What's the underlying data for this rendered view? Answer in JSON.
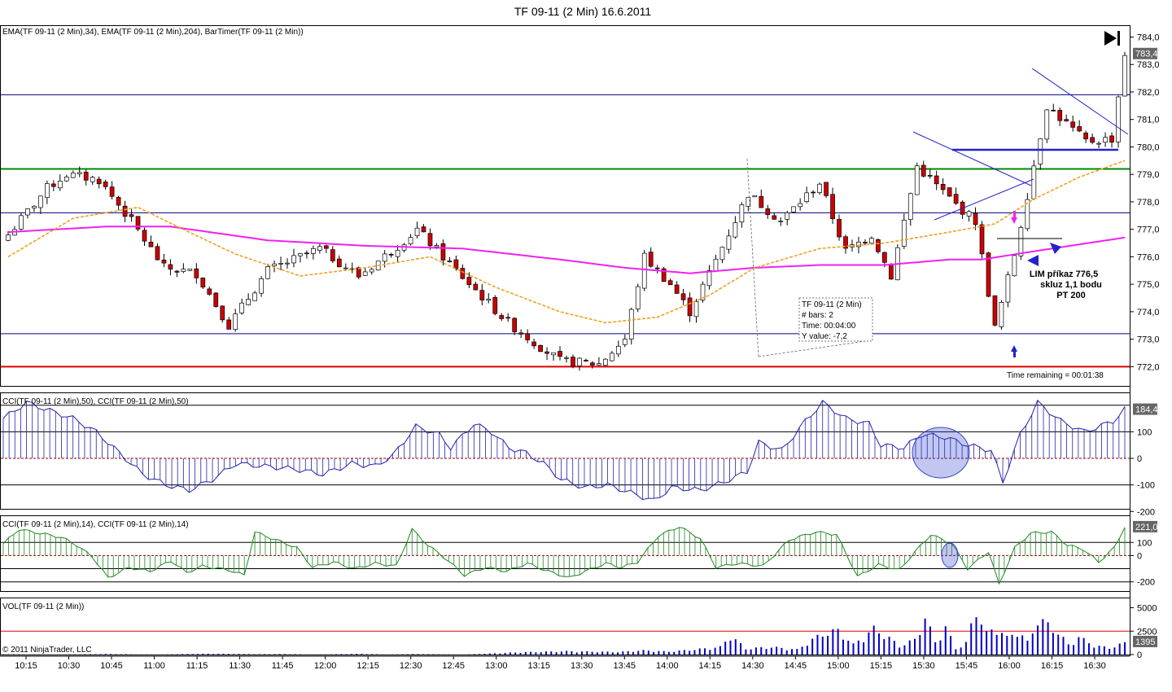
{
  "window": {
    "title": "TF 09-11 (2 Min)  16.6.2011"
  },
  "copyright": "© 2011 NinjaTrader, LLC",
  "colors": {
    "up": "#ffffff",
    "down": "#cc0000",
    "ema34": "#f0a020",
    "ema204": "#ee22ee",
    "cci": "#2222aa",
    "cci14": "#228822",
    "vol": "#0000cc",
    "hline": "#000080",
    "green_level": "#008800",
    "red_level": "#dd0000"
  },
  "play_icon": "skip-forward-icon",
  "chart_data": [
    {
      "type": "candlestick",
      "name": "price",
      "label": "EMA(TF 09-11 (2 Min),34), EMA(TF 09-11 (2 Min),204), BarTimer(TF 09-11 (2 Min))",
      "x": [
        "10:15",
        "10:30",
        "10:45",
        "11:00",
        "11:15",
        "11:30",
        "11:45",
        "12:00",
        "12:15",
        "12:30",
        "12:45",
        "13:00",
        "13:15",
        "13:30",
        "13:45",
        "14:00",
        "14:15",
        "14:30",
        "14:45",
        "15:00",
        "15:15",
        "15:30",
        "15:45",
        "16:00",
        "16:15",
        "16:30"
      ],
      "ylim": [
        771.3,
        784.4
      ],
      "yticks": [
        "784,0",
        "783,0",
        "782,0",
        "781,0",
        "780,0",
        "779,0",
        "778,0",
        "777,0",
        "776,0",
        "775,0",
        "774,0",
        "773,0",
        "772,0"
      ],
      "ytick_values": [
        784,
        783,
        782,
        781,
        780,
        779,
        778,
        777,
        776,
        775,
        774,
        773,
        772
      ],
      "last_value": "783,4",
      "close_anchors": [
        [
          0,
          776.8
        ],
        [
          6,
          778.5
        ],
        [
          9,
          779.0
        ],
        [
          14,
          778.8
        ],
        [
          19,
          777.3
        ],
        [
          24,
          775.6
        ],
        [
          29,
          775.4
        ],
        [
          34,
          773.5
        ],
        [
          40,
          775.5
        ],
        [
          48,
          776.3
        ],
        [
          54,
          775.3
        ],
        [
          59,
          776.2
        ],
        [
          63,
          777.0
        ],
        [
          69,
          775.5
        ],
        [
          77,
          773.6
        ],
        [
          85,
          772.2
        ],
        [
          91,
          772.1
        ],
        [
          95,
          773.0
        ],
        [
          98,
          776.0
        ],
        [
          102,
          775.0
        ],
        [
          105,
          774.0
        ],
        [
          108,
          775.4
        ],
        [
          114,
          778.3
        ],
        [
          119,
          777.3
        ],
        [
          125,
          778.7
        ],
        [
          129,
          776.2
        ],
        [
          133,
          776.8
        ],
        [
          136,
          775.3
        ],
        [
          140,
          779.3
        ],
        [
          146,
          777.9
        ],
        [
          149,
          777.3
        ],
        [
          152,
          773.4
        ],
        [
          155,
          776.1
        ],
        [
          160,
          781.5
        ],
        [
          166,
          780.2
        ],
        [
          170,
          780.3
        ],
        [
          172,
          783.4
        ]
      ],
      "ema34_anchors": [
        [
          0,
          776.0
        ],
        [
          10,
          777.4
        ],
        [
          20,
          777.8
        ],
        [
          27,
          777.0
        ],
        [
          35,
          776.1
        ],
        [
          45,
          775.3
        ],
        [
          55,
          775.6
        ],
        [
          65,
          776.0
        ],
        [
          75,
          774.9
        ],
        [
          85,
          774.0
        ],
        [
          92,
          773.6
        ],
        [
          100,
          773.8
        ],
        [
          108,
          774.6
        ],
        [
          115,
          775.6
        ],
        [
          125,
          776.3
        ],
        [
          135,
          776.5
        ],
        [
          145,
          776.9
        ],
        [
          152,
          777.2
        ],
        [
          158,
          778.1
        ],
        [
          165,
          778.9
        ],
        [
          172,
          779.5
        ]
      ],
      "ema204_anchors": [
        [
          0,
          776.9
        ],
        [
          15,
          777.1
        ],
        [
          25,
          777.1
        ],
        [
          40,
          776.6
        ],
        [
          55,
          776.4
        ],
        [
          70,
          776.3
        ],
        [
          85,
          775.9
        ],
        [
          95,
          775.6
        ],
        [
          105,
          775.4
        ],
        [
          115,
          775.6
        ],
        [
          125,
          775.7
        ],
        [
          135,
          775.7
        ],
        [
          145,
          775.9
        ],
        [
          150,
          775.9
        ],
        [
          158,
          776.2
        ],
        [
          172,
          776.7
        ]
      ],
      "hlines": [
        {
          "y": 781.9,
          "color": "#000080"
        },
        {
          "y": 779.2,
          "color": "#008800"
        },
        {
          "y": 777.6,
          "color": "#000080"
        },
        {
          "y": 773.2,
          "color": "#000080"
        },
        {
          "y": 772.0,
          "color": "#dd0000"
        }
      ],
      "annotations": {
        "order_text": [
          "LIM příkaz 776,5",
          "skluz 1,1 bodu",
          "PT 200"
        ],
        "timer": "Time remaining = 00:01:38",
        "tooltip": [
          "TF 09-11 (2 Min)",
          "# bars:   2",
          "Time:     00:04:00",
          "Y value:  -7,2"
        ]
      }
    },
    {
      "type": "bar",
      "name": "cci50",
      "label": "CCI(TF 09-11 (2 Min),50), CCI(TF 09-11 (2 Min),50)",
      "ylim": [
        -190,
        245
      ],
      "yticks": [
        "100",
        "0",
        "-100",
        "-200"
      ],
      "ytick_values": [
        100,
        0,
        -100,
        -200
      ],
      "levels": [
        200,
        100,
        0,
        -100
      ],
      "last_value": "184,4",
      "anchors": [
        [
          0,
          150
        ],
        [
          4,
          210
        ],
        [
          8,
          180
        ],
        [
          12,
          150
        ],
        [
          16,
          100
        ],
        [
          20,
          20
        ],
        [
          24,
          -60
        ],
        [
          28,
          -100
        ],
        [
          32,
          -120
        ],
        [
          36,
          -80
        ],
        [
          40,
          -20
        ],
        [
          45,
          -30
        ],
        [
          50,
          -40
        ],
        [
          55,
          -60
        ],
        [
          60,
          -20
        ],
        [
          64,
          -30
        ],
        [
          67,
          10
        ],
        [
          71,
          120
        ],
        [
          75,
          90
        ],
        [
          77,
          40
        ],
        [
          81,
          130
        ],
        [
          84,
          100
        ],
        [
          87,
          40
        ],
        [
          90,
          20
        ],
        [
          93,
          -20
        ],
        [
          96,
          -80
        ],
        [
          100,
          -110
        ],
        [
          104,
          -100
        ],
        [
          108,
          -130
        ],
        [
          112,
          -160
        ],
        [
          115,
          -110
        ],
        [
          120,
          -120
        ],
        [
          124,
          -90
        ],
        [
          128,
          -50
        ],
        [
          130,
          60
        ],
        [
          134,
          30
        ],
        [
          138,
          140
        ],
        [
          141,
          210
        ],
        [
          145,
          150
        ],
        [
          149,
          130
        ],
        [
          151,
          50
        ],
        [
          155,
          40
        ],
        [
          158,
          90
        ],
        [
          162,
          80
        ],
        [
          166,
          50
        ],
        [
          170,
          30
        ],
        [
          172,
          -90
        ],
        [
          175,
          90
        ],
        [
          178,
          210
        ],
        [
          182,
          140
        ],
        [
          186,
          100
        ],
        [
          188,
          115
        ],
        [
          191,
          140
        ],
        [
          193,
          185
        ]
      ]
    },
    {
      "type": "bar",
      "name": "cci14",
      "label": "CCI(TF 09-11 (2 Min),14), CCI(TF 09-11 (2 Min),14)",
      "ylim": [
        -270,
        300
      ],
      "yticks": [
        "100",
        "0",
        "-200"
      ],
      "ytick_values": [
        100,
        0,
        -200
      ],
      "levels": [
        100,
        0,
        -100,
        -200
      ],
      "last_value": "221,05",
      "anchors": [
        [
          0,
          90
        ],
        [
          3,
          200
        ],
        [
          7,
          170
        ],
        [
          11,
          140
        ],
        [
          14,
          80
        ],
        [
          17,
          -10
        ],
        [
          20,
          -170
        ],
        [
          24,
          -90
        ],
        [
          28,
          -120
        ],
        [
          32,
          -40
        ],
        [
          35,
          -130
        ],
        [
          38,
          -80
        ],
        [
          43,
          -110
        ],
        [
          46,
          -150
        ],
        [
          48,
          180
        ],
        [
          52,
          120
        ],
        [
          56,
          60
        ],
        [
          59,
          -90
        ],
        [
          63,
          -50
        ],
        [
          67,
          -100
        ],
        [
          71,
          -60
        ],
        [
          75,
          -80
        ],
        [
          78,
          200
        ],
        [
          81,
          80
        ],
        [
          84,
          -10
        ],
        [
          88,
          -150
        ],
        [
          92,
          -90
        ],
        [
          96,
          -120
        ],
        [
          100,
          -60
        ],
        [
          104,
          -120
        ],
        [
          108,
          -170
        ],
        [
          111,
          -120
        ],
        [
          115,
          -60
        ],
        [
          118,
          -90
        ],
        [
          121,
          -50
        ],
        [
          125,
          150
        ],
        [
          129,
          220
        ],
        [
          133,
          130
        ],
        [
          136,
          -90
        ],
        [
          140,
          -60
        ],
        [
          145,
          -80
        ],
        [
          150,
          120
        ],
        [
          155,
          180
        ],
        [
          159,
          160
        ],
        [
          163,
          -160
        ],
        [
          167,
          -70
        ],
        [
          171,
          -110
        ],
        [
          174,
          30
        ],
        [
          177,
          160
        ],
        [
          181,
          90
        ],
        [
          184,
          -100
        ],
        [
          188,
          30
        ],
        [
          190,
          -220
        ],
        [
          193,
          60
        ],
        [
          196,
          170
        ],
        [
          200,
          180
        ],
        [
          203,
          80
        ],
        [
          206,
          50
        ],
        [
          209,
          -50
        ],
        [
          212,
          60
        ],
        [
          214,
          220
        ]
      ]
    },
    {
      "type": "bar",
      "name": "volume",
      "label": "VOL(TF 09-11 (2 Min))",
      "ylim": [
        0,
        6000
      ],
      "yticks": [
        "5000",
        "2500",
        "0"
      ],
      "ytick_values": [
        5000,
        2500,
        0
      ],
      "levels": [
        2500
      ],
      "last_value": "1395",
      "anchors": [
        [
          0,
          40
        ],
        [
          10,
          0
        ],
        [
          20,
          60
        ],
        [
          30,
          0
        ],
        [
          40,
          100
        ],
        [
          50,
          40
        ],
        [
          55,
          60
        ],
        [
          60,
          0
        ],
        [
          70,
          80
        ],
        [
          75,
          0
        ],
        [
          80,
          60
        ],
        [
          90,
          0
        ],
        [
          100,
          250
        ],
        [
          110,
          400
        ],
        [
          120,
          300
        ],
        [
          125,
          500
        ],
        [
          130,
          350
        ],
        [
          135,
          600
        ],
        [
          140,
          900
        ],
        [
          142,
          2300
        ],
        [
          145,
          700
        ],
        [
          150,
          900
        ],
        [
          155,
          600
        ],
        [
          158,
          1800
        ],
        [
          160,
          2500
        ],
        [
          163,
          2900
        ],
        [
          166,
          1200
        ],
        [
          170,
          3100
        ],
        [
          173,
          2000
        ],
        [
          175,
          1000
        ],
        [
          178,
          1800
        ],
        [
          180,
          4500
        ],
        [
          182,
          1500
        ],
        [
          184,
          3300
        ],
        [
          186,
          700
        ],
        [
          188,
          1400
        ],
        [
          190,
          5500
        ],
        [
          192,
          2500
        ],
        [
          194,
          3300
        ],
        [
          196,
          2000
        ],
        [
          198,
          2900
        ],
        [
          200,
          1500
        ],
        [
          202,
          4200
        ],
        [
          205,
          3300
        ],
        [
          208,
          1200
        ],
        [
          210,
          2100
        ],
        [
          213,
          1100
        ],
        [
          216,
          800
        ],
        [
          219,
          1395
        ]
      ]
    }
  ]
}
